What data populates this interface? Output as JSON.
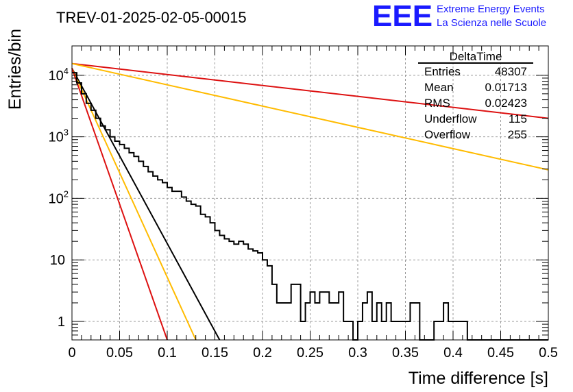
{
  "chart_data": {
    "type": "line",
    "title": "TREV-01-2025-02-05-00015",
    "xlabel": "Time difference [s]",
    "ylabel": "Entries/bin",
    "xlim": [
      0,
      0.5
    ],
    "ylim": [
      0.5,
      30000
    ],
    "yscale": "log",
    "grid": true,
    "x_ticks": [
      "0",
      "0.05",
      "0.1",
      "0.15",
      "0.2",
      "0.25",
      "0.3",
      "0.35",
      "0.4",
      "0.45",
      "0.5"
    ],
    "y_ticks": [
      {
        "base": "1",
        "exp": "",
        "value": 1
      },
      {
        "base": "10",
        "exp": "",
        "value": 10
      },
      {
        "base": "10",
        "exp": "2",
        "value": 100
      },
      {
        "base": "10",
        "exp": "3",
        "value": 1000
      },
      {
        "base": "10",
        "exp": "4",
        "value": 10000
      }
    ],
    "stats_box": {
      "title": "DeltaTime",
      "rows": [
        {
          "label": "Entries",
          "value": "48307"
        },
        {
          "label": "Mean",
          "value": "0.01713"
        },
        {
          "label": "RMS",
          "value": "0.02423"
        },
        {
          "label": "Underflow",
          "value": "115"
        },
        {
          "label": "Overflow",
          "value": "255"
        }
      ]
    },
    "histogram": {
      "color": "#000000",
      "bin_width": 0.005,
      "values": [
        11000,
        7500,
        5000,
        3500,
        2700,
        2000,
        1500,
        1300,
        1000,
        850,
        750,
        650,
        550,
        480,
        400,
        330,
        270,
        230,
        200,
        180,
        150,
        130,
        130,
        105,
        90,
        80,
        75,
        55,
        50,
        40,
        30,
        25,
        22,
        20,
        18,
        20,
        18,
        15,
        14,
        13,
        10,
        8,
        4,
        2,
        2,
        2,
        4,
        4,
        1,
        2,
        3,
        2,
        3,
        3,
        2,
        2,
        3,
        1,
        1,
        0,
        1,
        2,
        3,
        1,
        2,
        1,
        2,
        1,
        1,
        1,
        1,
        2,
        2,
        0,
        0,
        0,
        1,
        1,
        2,
        1,
        1,
        1,
        1,
        0,
        0,
        0,
        0,
        0,
        0,
        0,
        0,
        0,
        0,
        0,
        0,
        0,
        0,
        0,
        0,
        0,
        0,
        0,
        0,
        0,
        0,
        0,
        0,
        0,
        0,
        0,
        0,
        0,
        0,
        0,
        0,
        0,
        0,
        0,
        0,
        0,
        0,
        0,
        0,
        0,
        0,
        0,
        0,
        0,
        0,
        0,
        0,
        0,
        0,
        0,
        0,
        0,
        0,
        0,
        0,
        0,
        0,
        0,
        0,
        0,
        0,
        0,
        0,
        0,
        0,
        0,
        0,
        0,
        0,
        0,
        0,
        0,
        0,
        0,
        0,
        0,
        0,
        0,
        0,
        0,
        0,
        0,
        0,
        0,
        0,
        0,
        0,
        0,
        0,
        0,
        0,
        0,
        0,
        0,
        0,
        0,
        0,
        0,
        0,
        0,
        0,
        0,
        0,
        0,
        0,
        0,
        0,
        0,
        0,
        0,
        0,
        0,
        0,
        0
      ]
    },
    "fit_lines": [
      {
        "color": "#dd1111",
        "x": [
          0,
          0.5
        ],
        "y": [
          15500,
          2000
        ]
      },
      {
        "color": "#ffbb00",
        "x": [
          0,
          0.5
        ],
        "y": [
          15500,
          290
        ]
      },
      {
        "color": "#000000",
        "x": [
          0,
          0.155
        ],
        "y": [
          13000,
          0.5
        ]
      },
      {
        "color": "#ffbb00",
        "x": [
          0,
          0.13
        ],
        "y": [
          13000,
          0.5
        ]
      },
      {
        "color": "#dd1111",
        "x": [
          0,
          0.1
        ],
        "y": [
          13000,
          0.5
        ]
      }
    ]
  },
  "logo": {
    "letters": "EEE",
    "line1": "Extreme Energy Events",
    "line2": "La Scienza nelle Scuole",
    "color": "#1a1aff"
  }
}
